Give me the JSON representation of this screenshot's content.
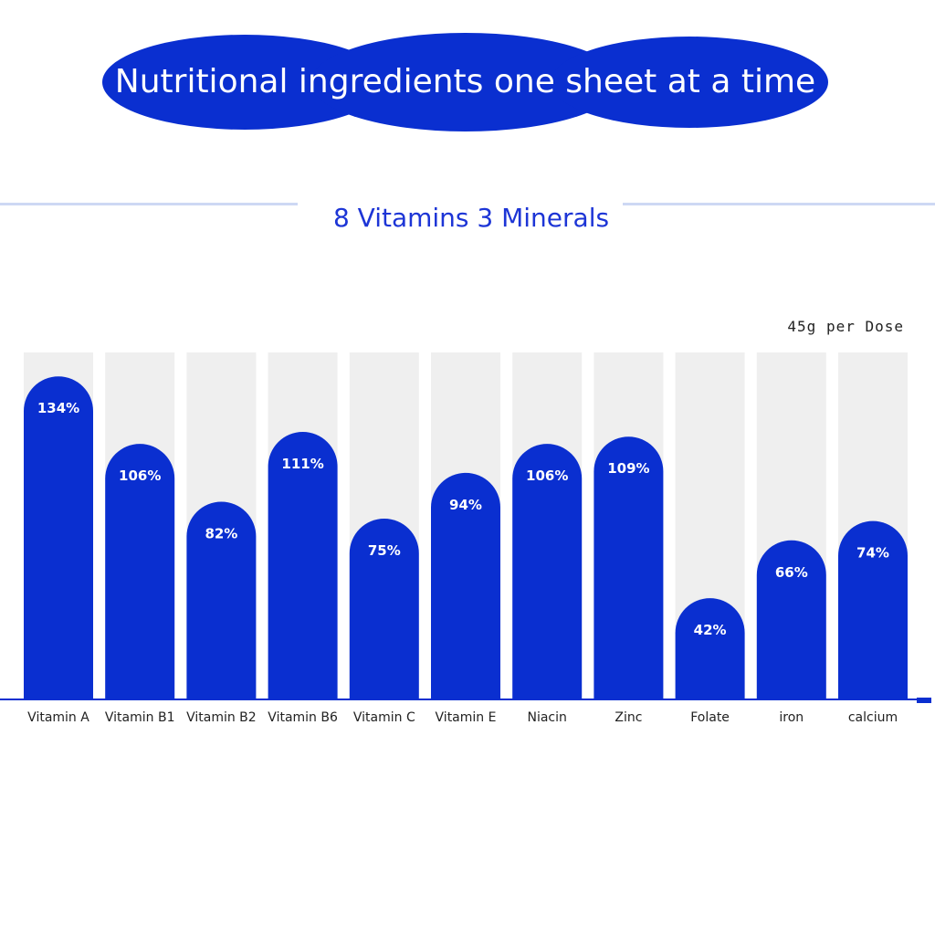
{
  "header": {
    "title": "Nutritional ingredients one sheet at a time",
    "subtitle": "8 Vitamins 3 Minerals",
    "dose_note": "45g per Dose"
  },
  "colors": {
    "bar": "#0a2fd0",
    "track": "#efefef",
    "banner": "#0a2fd0",
    "subtitle": "#1d35d6",
    "rule": "#cdd8f4"
  },
  "chart_data": {
    "type": "bar",
    "categories": [
      "Vitamin A",
      "Vitamin B1",
      "Vitamin B2",
      "Vitamin B6",
      "Vitamin C",
      "Vitamin E",
      "Niacin",
      "Zinc",
      "Folate",
      "iron",
      "calcium"
    ],
    "values": [
      134,
      106,
      82,
      111,
      75,
      94,
      106,
      109,
      42,
      66,
      74
    ],
    "data_labels": [
      "134%",
      "106%",
      "82%",
      "111%",
      "75%",
      "94%",
      "106%",
      "109%",
      "42%",
      "66%",
      "74%"
    ],
    "ylim": [
      0,
      150
    ],
    "grid": false,
    "xlabel": "",
    "ylabel": ""
  }
}
